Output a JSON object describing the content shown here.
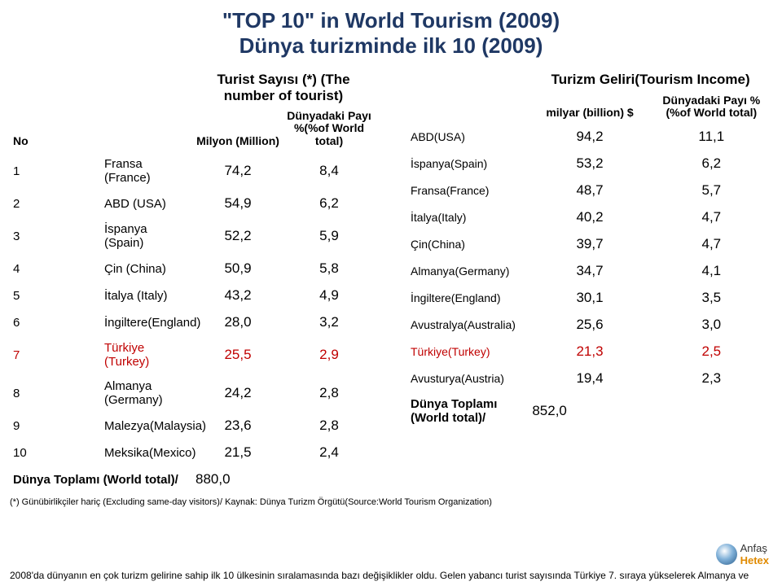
{
  "title": {
    "line1": "\"TOP 10\" in World Tourism (2009)",
    "line2": "Dünya turizminde ilk 10 (2009)"
  },
  "left": {
    "header": "Turist Sayısı (*) (The number of tourist)",
    "col_no": "No",
    "col_m": "Milyon (Million)",
    "col_p": "Dünyadaki Payı %(%of World total)",
    "rows": [
      {
        "no": "1",
        "label": "Fransa (France)",
        "m": "74,2",
        "p": "8,4",
        "hl": false
      },
      {
        "no": "2",
        "label": "ABD (USA)",
        "m": "54,9",
        "p": "6,2",
        "hl": false
      },
      {
        "no": "3",
        "label": "İspanya (Spain)",
        "m": "52,2",
        "p": "5,9",
        "hl": false
      },
      {
        "no": "4",
        "label": "Çin (China)",
        "m": "50,9",
        "p": "5,8",
        "hl": false
      },
      {
        "no": "5",
        "label": "İtalya (Italy)",
        "m": "43,2",
        "p": "4,9",
        "hl": false
      },
      {
        "no": "6",
        "label": "İngiltere(England)",
        "m": "28,0",
        "p": "3,2",
        "hl": false
      },
      {
        "no": "7",
        "label": "Türkiye (Turkey)",
        "m": "25,5",
        "p": "2,9",
        "hl": true
      },
      {
        "no": "8",
        "label": "Almanya (Germany)",
        "m": "24,2",
        "p": "2,8",
        "hl": false
      },
      {
        "no": "9",
        "label": "Malezya(Malaysia)",
        "m": "23,6",
        "p": "2,8",
        "hl": false
      },
      {
        "no": "10",
        "label": "Meksika(Mexico)",
        "m": "21,5",
        "p": "2,4",
        "hl": false
      }
    ],
    "total_label": "Dünya Toplamı  (World total)/",
    "total_val": "880,0"
  },
  "right": {
    "header": "Turizm Geliri(Tourism Income)",
    "col_b": "milyar (billion) $",
    "col_p": "Dünyadaki Payı %(%of World total)",
    "rows": [
      {
        "label": "ABD(USA)",
        "b": "94,2",
        "p": "11,1",
        "hl": false
      },
      {
        "label": "İspanya(Spain)",
        "b": "53,2",
        "p": "6,2",
        "hl": false
      },
      {
        "label": "Fransa(France)",
        "b": "48,7",
        "p": "5,7",
        "hl": false
      },
      {
        "label": "İtalya(Italy)",
        "b": "40,2",
        "p": "4,7",
        "hl": false
      },
      {
        "label": "Çin(China)",
        "b": "39,7",
        "p": "4,7",
        "hl": false
      },
      {
        "label": "Almanya(Germany)",
        "b": "34,7",
        "p": "4,1",
        "hl": false
      },
      {
        "label": "İngiltere(England)",
        "b": "30,1",
        "p": "3,5",
        "hl": false
      },
      {
        "label": "Avustralya(Australia)",
        "b": "25,6",
        "p": "3,0",
        "hl": false
      },
      {
        "label": "Türkiye(Turkey)",
        "b": "21,3",
        "p": "2,5",
        "hl": true
      },
      {
        "label": "Avusturya(Austria)",
        "b": "19,4",
        "p": "2,3",
        "hl": false
      }
    ],
    "total_label": "Dünya Toplamı (World total)/",
    "total_val": "852,0"
  },
  "footnote": "(*) Günübirlikçiler hariç (Excluding same-day visitors)/ Kaynak: Dünya Turizm Örgütü(Source:World Tourism Organization)",
  "bottom": "2008'da dünyanın en çok turizm gelirine sahip ilk 10 ülkesinin sıralamasında bazı değişiklikler oldu. Gelen yabancı turist sayısında Türkiye 7. sıraya yükselerek Almanya ve",
  "logo": {
    "brand": "Anfaş",
    "sub": "Hetex"
  }
}
